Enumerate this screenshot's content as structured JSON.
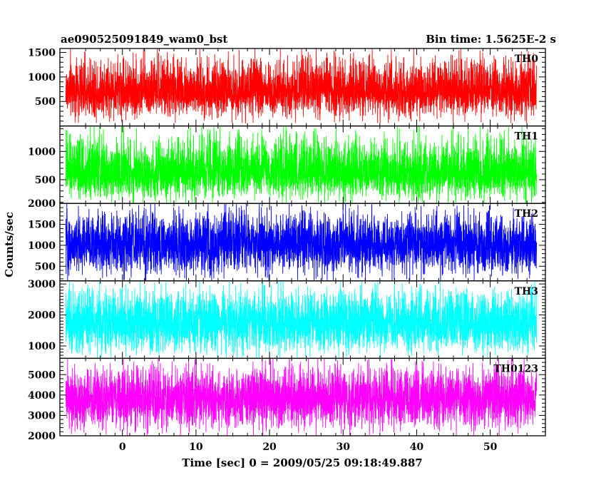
{
  "header": {
    "title": "ae090525091849_wam0_bst",
    "bin_time": "Bin time: 1.5625E-2 s"
  },
  "chart_data": {
    "type": "line",
    "xlabel": "Time [sec] 0 = 2009/05/25 09:18:49.887",
    "ylabel": "Counts/sec",
    "xlim": [
      -8.5,
      57.5
    ],
    "x_ticks": [
      0,
      10,
      20,
      30,
      40,
      50
    ],
    "x_tick_labels": [
      "0",
      "10",
      "20",
      "30",
      "40",
      "50"
    ],
    "bin_time_s": 0.015625,
    "data_x_range": [
      -7.7,
      56.3
    ],
    "panels": [
      {
        "name": "TH0",
        "color": "#ff0000",
        "ylim": [
          0,
          1580
        ],
        "ticks": [
          500,
          1000,
          1500
        ],
        "tick_labels": [
          "500",
          "1000",
          "1500"
        ],
        "signal": {
          "mean": 700,
          "low": 60,
          "high": 1580
        }
      },
      {
        "name": "TH1",
        "color": "#00ff00",
        "ylim": [
          80,
          1450
        ],
        "ticks": [
          500,
          1000
        ],
        "tick_labels": [
          "500",
          "1000"
        ],
        "signal": {
          "mean": 600,
          "low": 80,
          "high": 1450
        }
      },
      {
        "name": "TH2",
        "color": "#0000ff",
        "ylim": [
          150,
          2000
        ],
        "ticks": [
          500,
          1000,
          1500,
          2000
        ],
        "tick_labels": [
          "500",
          "1000",
          "1500",
          "2000"
        ],
        "signal": {
          "mean": 1000,
          "low": 150,
          "high": 2000
        }
      },
      {
        "name": "TH3",
        "color": "#00ffff",
        "ylim": [
          600,
          3100
        ],
        "ticks": [
          1000,
          2000,
          3000
        ],
        "tick_labels": [
          "1000",
          "2000",
          "3000"
        ],
        "signal": {
          "mean": 1700,
          "low": 600,
          "high": 3100
        }
      },
      {
        "name": "TH0123",
        "color": "#ff00ff",
        "ylim": [
          2000,
          5800
        ],
        "ticks": [
          2000,
          3000,
          4000,
          5000
        ],
        "tick_labels": [
          "2000",
          "3000",
          "4000",
          "5000"
        ],
        "signal": {
          "mean": 3800,
          "low": 2000,
          "high": 5800
        }
      }
    ]
  }
}
